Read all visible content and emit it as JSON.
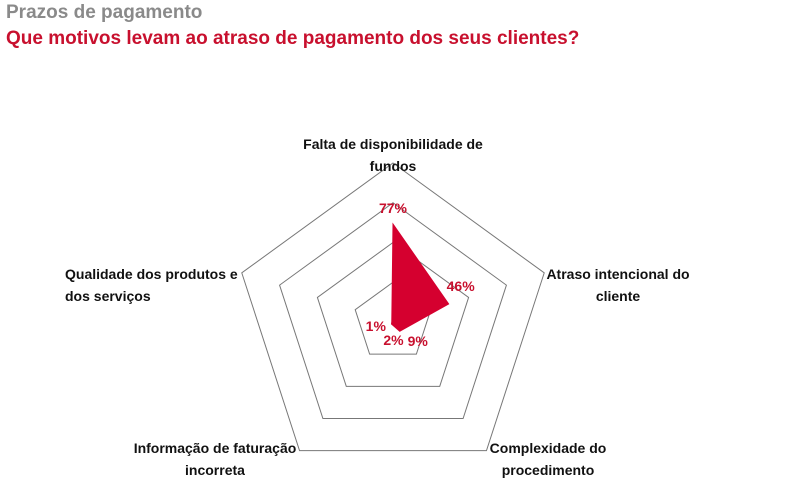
{
  "header": {
    "kicker": "Prazos de pagamento"
  },
  "chart_data": {
    "type": "radar",
    "title": "Que motivos levam ao atraso de pagamento dos seus clientes?",
    "categories": [
      "Falta de disponibilidade de fundos",
      "Atraso intencional do cliente",
      "Complexidade do procedimento",
      "Informação de faturação incorreta",
      "Qualidade dos produtos e dos serviços"
    ],
    "values": [
      77,
      46,
      9,
      2,
      1
    ],
    "value_labels": [
      "77%",
      "46%",
      "9%",
      "2%",
      "1%"
    ],
    "color": "#d5002f",
    "rlim": [
      0,
      125
    ],
    "grid": true
  }
}
